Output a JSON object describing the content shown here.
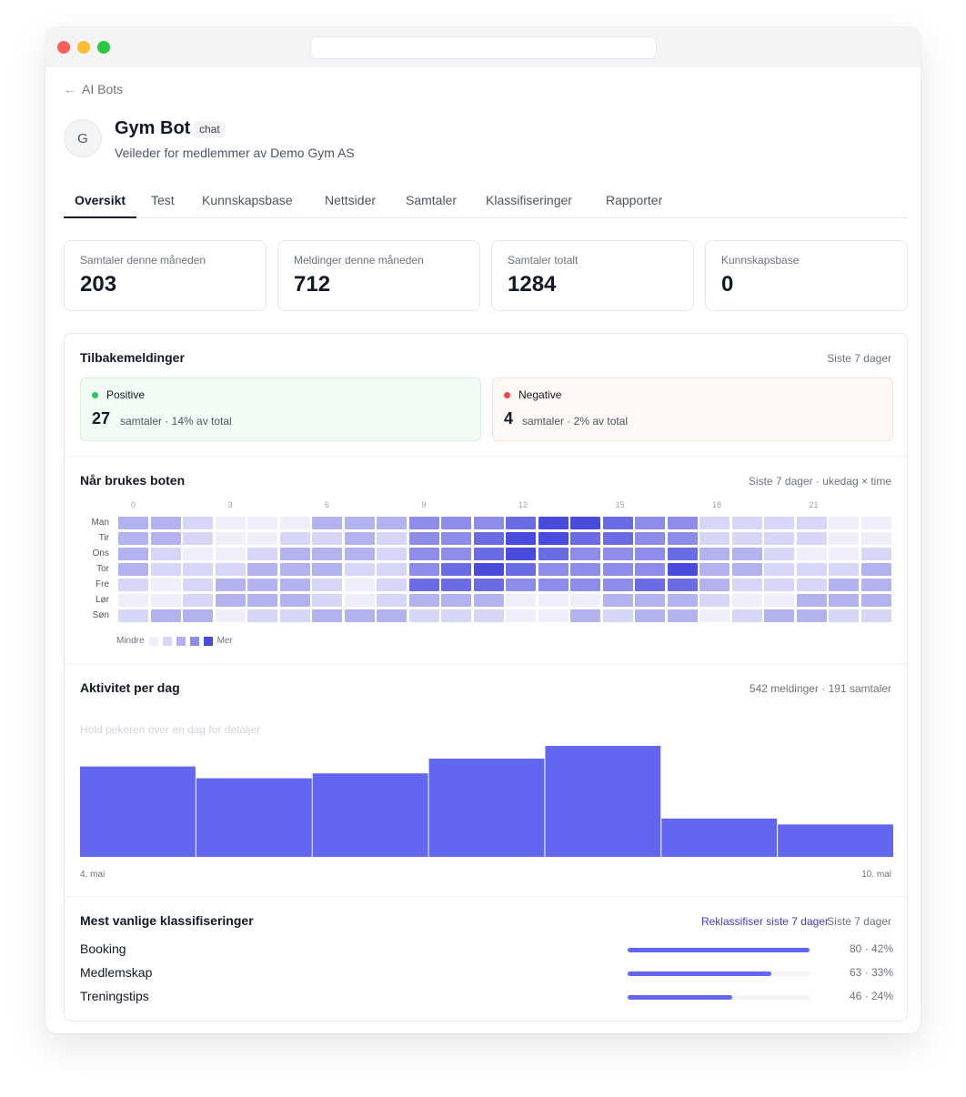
{
  "back": {
    "label": "AI Bots"
  },
  "bot": {
    "initial": "G",
    "name": "Gym Bot",
    "badge": "chat",
    "description": "Veileder for medlemmer av Demo Gym AS"
  },
  "tabs": [
    {
      "label": "Oversikt",
      "active": true
    },
    {
      "label": "Test"
    },
    {
      "label": "Kunnskapsbase"
    },
    {
      "label": "Nettsider"
    },
    {
      "label": "Samtaler"
    },
    {
      "label": "Klassifiseringer"
    },
    {
      "label": "Rapporter"
    }
  ],
  "stats": [
    {
      "label": "Samtaler denne måneden",
      "value": "203"
    },
    {
      "label": "Meldinger denne måneden",
      "value": "712"
    },
    {
      "label": "Samtaler totalt",
      "value": "1284"
    },
    {
      "label": "Kunnskapsbase",
      "value": "0"
    }
  ],
  "feedback": {
    "title": "Tilbakemeldinger",
    "period": "Siste 7 dager",
    "positive": {
      "label": "Positive",
      "count": "27",
      "detail": "samtaler · 14% av total",
      "color": "#22c55e"
    },
    "negative": {
      "label": "Negative",
      "count": "4",
      "detail": "samtaler · 2% av total",
      "color": "#ef4444"
    }
  },
  "usage": {
    "title": "Når brukes boten",
    "subtitle": "Siste 7 dager · ukedag × time",
    "hour_ticks": [
      "0",
      "3",
      "6",
      "9",
      "12",
      "15",
      "18",
      "21"
    ],
    "days": [
      "Man",
      "Tir",
      "Ons",
      "Tor",
      "Fre",
      "Lør",
      "Søn"
    ],
    "legend_low": "Mindre",
    "legend_high": "Mer",
    "levels": [
      [
        2,
        2,
        1,
        0,
        0,
        0,
        2,
        2,
        2,
        3,
        3,
        3,
        4,
        5,
        5,
        4,
        3,
        3,
        1,
        1,
        1,
        1,
        0,
        0
      ],
      [
        2,
        2,
        1,
        0,
        0,
        1,
        1,
        2,
        1,
        3,
        3,
        4,
        5,
        5,
        4,
        4,
        3,
        3,
        1,
        1,
        1,
        1,
        0,
        0
      ],
      [
        2,
        1,
        0,
        0,
        1,
        2,
        2,
        2,
        1,
        3,
        3,
        4,
        5,
        4,
        3,
        3,
        3,
        4,
        2,
        2,
        1,
        0,
        0,
        1
      ],
      [
        2,
        1,
        1,
        1,
        2,
        2,
        2,
        1,
        1,
        3,
        4,
        5,
        4,
        3,
        3,
        3,
        3,
        5,
        2,
        2,
        1,
        1,
        1,
        2
      ],
      [
        1,
        0,
        1,
        2,
        2,
        2,
        1,
        0,
        1,
        4,
        4,
        4,
        3,
        3,
        3,
        3,
        4,
        4,
        2,
        1,
        1,
        1,
        2,
        2
      ],
      [
        0,
        0,
        1,
        2,
        2,
        2,
        1,
        0,
        1,
        2,
        2,
        2,
        0,
        0,
        0,
        2,
        2,
        2,
        1,
        0,
        0,
        2,
        2,
        2
      ],
      [
        1,
        2,
        2,
        0,
        1,
        1,
        2,
        2,
        2,
        1,
        1,
        1,
        0,
        0,
        2,
        1,
        2,
        2,
        0,
        1,
        2,
        2,
        1,
        1
      ]
    ]
  },
  "activity": {
    "title": "Aktivitet per dag",
    "summary": "542 meldinger · 191 samtaler",
    "hint": "Hold pekeren over en dag for detaljer",
    "first_label": "4. mai",
    "last_label": "10. mai"
  },
  "chart_data": {
    "type": "bar",
    "categories": [
      "4. mai",
      "5. mai",
      "6. mai",
      "7. mai",
      "8. mai",
      "9. mai",
      "10. mai"
    ],
    "values": [
      92,
      80,
      85,
      100,
      113,
      39,
      33
    ],
    "ylim": [
      0,
      125
    ]
  },
  "classifications": {
    "title": "Mest vanlige klassifiseringer",
    "reclassify_label": "Reklassifiser siste 7 dager",
    "period": "Siste 7 dager",
    "items": [
      {
        "name": "Booking",
        "count": 80,
        "percent": 42,
        "display": "80 · 42%"
      },
      {
        "name": "Medlemskap",
        "count": 63,
        "percent": 33,
        "display": "63 · 33%"
      },
      {
        "name": "Treningstips",
        "count": 46,
        "percent": 24,
        "display": "46 · 24%"
      }
    ]
  },
  "colors": {
    "accent": "#6366f1",
    "heat_scale": [
      "#efeffb",
      "#d6d6f6",
      "#b2b2ef",
      "#8d8de9",
      "#6b6be3",
      "#4a4adc"
    ]
  }
}
